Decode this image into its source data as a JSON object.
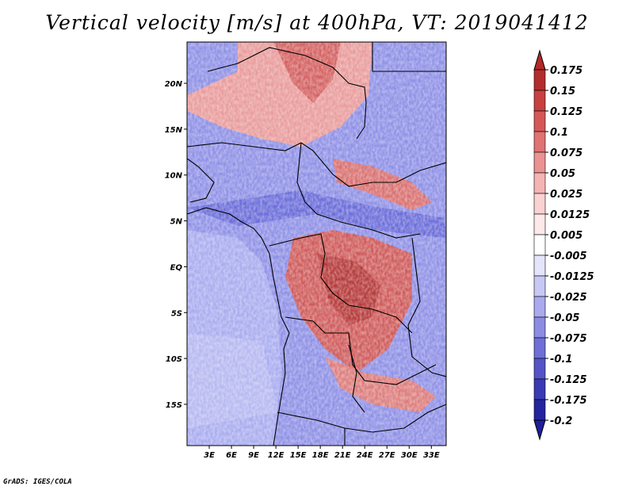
{
  "title": "Vertical velocity [m/s] at 400hPa, VT: 2019041412",
  "credit": "GrADS: IGES/COLA",
  "map": {
    "lon_range": [
      0,
      35
    ],
    "lat_range": [
      -19.5,
      24.5
    ],
    "lat_ticks": [
      {
        "value": 20,
        "label": "20N"
      },
      {
        "value": 15,
        "label": "15N"
      },
      {
        "value": 10,
        "label": "10N"
      },
      {
        "value": 5,
        "label": "5N"
      },
      {
        "value": 0,
        "label": "EQ"
      },
      {
        "value": -5,
        "label": "5S"
      },
      {
        "value": -10,
        "label": "10S"
      },
      {
        "value": -15,
        "label": "15S"
      }
    ],
    "lon_ticks": [
      {
        "value": 3,
        "label": "3E"
      },
      {
        "value": 6,
        "label": "6E"
      },
      {
        "value": 9,
        "label": "9E"
      },
      {
        "value": 12,
        "label": "12E"
      },
      {
        "value": 15,
        "label": "15E"
      },
      {
        "value": 18,
        "label": "18E"
      },
      {
        "value": 21,
        "label": "21E"
      },
      {
        "value": 24,
        "label": "24E"
      },
      {
        "value": 27,
        "label": "27E"
      },
      {
        "value": 30,
        "label": "30E"
      },
      {
        "value": 33,
        "label": "33E"
      }
    ]
  },
  "colorbar": {
    "levels": [
      {
        "label": "0.175",
        "color": "#a01e1e"
      },
      {
        "label": "0.15",
        "color": "#b32d2d"
      },
      {
        "label": "0.125",
        "color": "#c84040"
      },
      {
        "label": "0.1",
        "color": "#d65757"
      },
      {
        "label": "0.075",
        "color": "#e07373"
      },
      {
        "label": "0.05",
        "color": "#eb9292"
      },
      {
        "label": "0.025",
        "color": "#f5b4b4"
      },
      {
        "label": "0.0125",
        "color": "#fad2d2"
      },
      {
        "label": "0.005",
        "color": "#fde9e9"
      },
      {
        "label": "-0.005",
        "color": "#ffffff"
      },
      {
        "label": "-0.0125",
        "color": "#e4e4fb"
      },
      {
        "label": "-0.025",
        "color": "#c8c8f5"
      },
      {
        "label": "-0.05",
        "color": "#aaaaee"
      },
      {
        "label": "-0.075",
        "color": "#8c8ce4"
      },
      {
        "label": "-0.1",
        "color": "#6f6fd8"
      },
      {
        "label": "-0.125",
        "color": "#5454c8"
      },
      {
        "label": "-0.175",
        "color": "#3a3ab5"
      },
      {
        "label": "-0.2",
        "color": "#2424a0"
      }
    ],
    "top_color": "#b42828",
    "bottom_color": "#1f1f9a"
  }
}
